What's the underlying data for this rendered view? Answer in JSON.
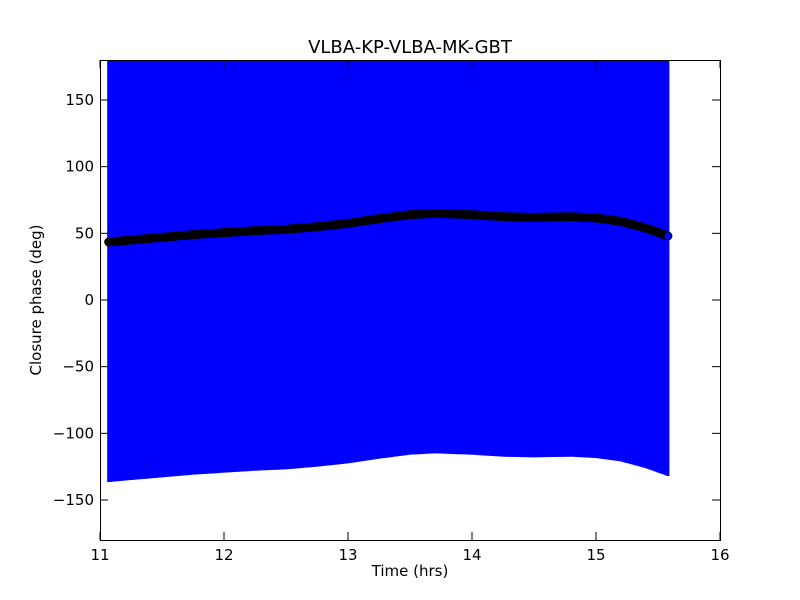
{
  "chart_data": {
    "type": "scatter",
    "title": "VLBA-KP-VLBA-MK-GBT",
    "xlabel": "Time (hrs)",
    "ylabel": "Closure phase (deg)",
    "xlim": [
      11,
      16
    ],
    "ylim": [
      -180,
      180
    ],
    "xticks": [
      "11",
      "12",
      "13",
      "14",
      "15",
      "16"
    ],
    "yticks": [
      "−150",
      "−100",
      "−50",
      "0",
      "50",
      "100",
      "150"
    ],
    "grid": false,
    "legend": "none",
    "series": [
      {
        "color": "#000000",
        "edge_color": "#000000",
        "error_color": "#0000ff",
        "points": [
          {
            "x": 11.07,
            "y": 43.5,
            "err": 180
          },
          {
            "x": 11.25,
            "y": 45.0,
            "err": 180
          },
          {
            "x": 11.5,
            "y": 47.0,
            "err": 180
          },
          {
            "x": 11.75,
            "y": 49.0,
            "err": 180
          },
          {
            "x": 12.0,
            "y": 50.5,
            "err": 180
          },
          {
            "x": 12.25,
            "y": 52.0,
            "err": 180
          },
          {
            "x": 12.5,
            "y": 53.0,
            "err": 180
          },
          {
            "x": 12.75,
            "y": 55.0,
            "err": 180
          },
          {
            "x": 13.0,
            "y": 57.5,
            "err": 180
          },
          {
            "x": 13.25,
            "y": 61.0,
            "err": 180
          },
          {
            "x": 13.5,
            "y": 64.0,
            "err": 180
          },
          {
            "x": 13.7,
            "y": 65.0,
            "err": 180
          },
          {
            "x": 14.0,
            "y": 64.0,
            "err": 180
          },
          {
            "x": 14.25,
            "y": 62.5,
            "err": 180
          },
          {
            "x": 14.5,
            "y": 62.0,
            "err": 180
          },
          {
            "x": 14.8,
            "y": 62.5,
            "err": 180
          },
          {
            "x": 15.0,
            "y": 61.5,
            "err": 180
          },
          {
            "x": 15.2,
            "y": 59.0,
            "err": 180
          },
          {
            "x": 15.4,
            "y": 54.0,
            "err": 180
          },
          {
            "x": 15.58,
            "y": 48.0,
            "err": 180
          }
        ],
        "last_point_color": "#0000ff"
      }
    ]
  }
}
